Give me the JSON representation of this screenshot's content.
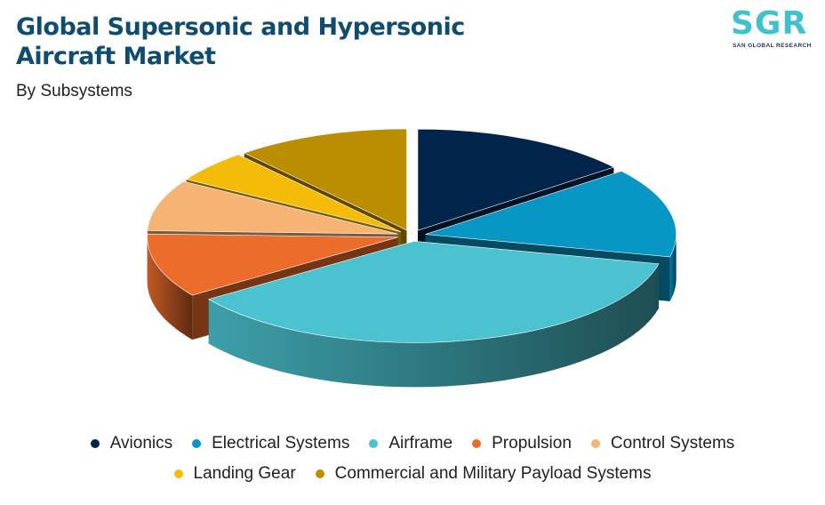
{
  "header": {
    "title": "Global Supersonic and Hypersonic Aircraft Market",
    "subtitle": "By Subsystems"
  },
  "logo": {
    "mark": "SGR",
    "tagline": "SAN GLOBAL RESEARCH"
  },
  "chart_data": {
    "type": "pie",
    "variant": "3d-exploded",
    "title": "Global Supersonic and Hypersonic Aircraft Market",
    "subtitle": "By Subsystems",
    "legend_position": "bottom",
    "slices": [
      {
        "label": "Avionics",
        "value": 14,
        "color": "#00244a"
      },
      {
        "label": "Electrical Systems",
        "value": 14,
        "color": "#0896c4"
      },
      {
        "label": "Airframe",
        "value": 36,
        "color": "#4bc2cf"
      },
      {
        "label": "Propulsion",
        "value": 10,
        "color": "#ec6c2c"
      },
      {
        "label": "Control Systems",
        "value": 8,
        "color": "#f6b373"
      },
      {
        "label": "Landing Gear",
        "value": 5,
        "color": "#f4bb09"
      },
      {
        "label": "Commercial and Military Payload Systems",
        "value": 11,
        "color": "#bb8d00"
      }
    ]
  }
}
